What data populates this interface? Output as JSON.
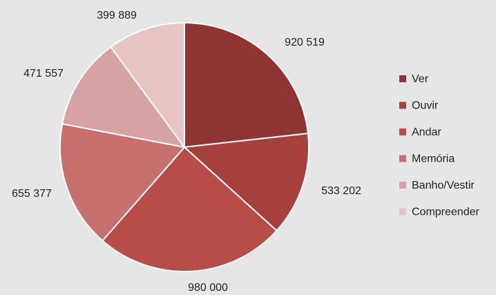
{
  "chart_data": {
    "type": "pie",
    "categories": [
      "Ver",
      "Ouvir",
      "Andar",
      "Memória",
      "Banho/Vestir",
      "Compreender"
    ],
    "values": [
      920519,
      533202,
      980000,
      655377,
      471557,
      399889
    ],
    "value_labels": [
      "920 519",
      "533 202",
      "980 000",
      "655 377",
      "471 557",
      "399 889"
    ],
    "colors": [
      "#8e3433",
      "#a5403d",
      "#b84c48",
      "#c7706e",
      "#d6a3a2",
      "#e6c4c4"
    ],
    "start_angle_deg": 0,
    "direction": "clockwise",
    "legend_position": "right",
    "title": ""
  }
}
